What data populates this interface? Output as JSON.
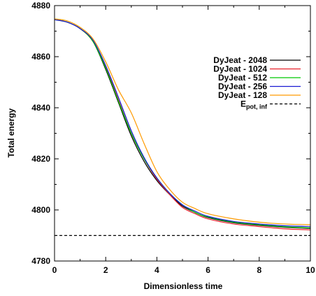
{
  "chart_data": {
    "type": "line",
    "xlabel": "Dimensionless time",
    "ylabel": "Total energy",
    "xlim": [
      0,
      10
    ],
    "ylim": [
      4780,
      4880
    ],
    "xticks": [
      0,
      2,
      4,
      6,
      8,
      10
    ],
    "yticks": [
      4780,
      4800,
      4820,
      4840,
      4860,
      4880
    ],
    "legend_position": "right",
    "grid": false,
    "series": [
      {
        "name": "DyJeat - 2048",
        "color": "#000000",
        "dash": "solid",
        "x": [
          0,
          0.5,
          1.0,
          1.5,
          2.0,
          2.5,
          3.0,
          3.5,
          4.0,
          4.5,
          5.0,
          5.5,
          6.0,
          7.0,
          8.0,
          9.0,
          10.0
        ],
        "y": [
          4874.5,
          4873.5,
          4871,
          4866,
          4855,
          4842,
          4829,
          4819,
          4811.5,
          4806,
          4801.5,
          4799,
          4797,
          4795,
          4794,
          4793.2,
          4792.8
        ]
      },
      {
        "name": "DyJeat - 1024",
        "color": "#e8202a",
        "dash": "solid",
        "x": [
          0,
          0.5,
          1.0,
          1.5,
          2.0,
          2.5,
          3.0,
          3.5,
          4.0,
          4.5,
          5.0,
          5.5,
          6.0,
          7.0,
          8.0,
          9.0,
          10.0
        ],
        "y": [
          4874.5,
          4873.5,
          4871,
          4866,
          4856,
          4843,
          4830,
          4820,
          4812,
          4806,
          4801,
          4798.5,
          4796.5,
          4794.5,
          4793.5,
          4792.6,
          4792.2
        ]
      },
      {
        "name": "DyJeat - 512",
        "color": "#00c800",
        "dash": "solid",
        "x": [
          0,
          0.5,
          1.0,
          1.5,
          2.0,
          2.5,
          3.0,
          3.5,
          4.0,
          4.5,
          5.0,
          5.5,
          6.0,
          7.0,
          8.0,
          9.0,
          10.0
        ],
        "y": [
          4874.5,
          4873.5,
          4871,
          4866,
          4855.5,
          4842.5,
          4830,
          4820,
          4812.5,
          4806.5,
          4802,
          4799,
          4797.2,
          4795.2,
          4794.2,
          4793.4,
          4793
        ]
      },
      {
        "name": "DyJeat - 256",
        "color": "#1a1ad2",
        "dash": "solid",
        "x": [
          0,
          0.5,
          1.0,
          1.5,
          2.0,
          2.5,
          3.0,
          3.5,
          4.0,
          4.5,
          5.0,
          5.5,
          6.0,
          7.0,
          8.0,
          9.0,
          10.0
        ],
        "y": [
          4874.5,
          4873.5,
          4871,
          4866.5,
          4856.5,
          4844,
          4831,
          4820.5,
          4812.5,
          4806.5,
          4802,
          4799.5,
          4797.5,
          4795.5,
          4794.5,
          4793.8,
          4793.5
        ]
      },
      {
        "name": "DyJeat - 128",
        "color": "#ff9a00",
        "dash": "solid",
        "x": [
          0,
          0.5,
          1.0,
          1.5,
          2.0,
          2.5,
          3.0,
          3.5,
          4.0,
          4.5,
          5.0,
          5.5,
          6.0,
          7.0,
          8.0,
          9.0,
          10.0
        ],
        "y": [
          4874.8,
          4874,
          4871.5,
          4867,
          4858,
          4847,
          4838,
          4826,
          4815,
          4808,
          4803,
          4800.5,
          4798.5,
          4796.5,
          4795.2,
          4794.5,
          4794.2
        ]
      },
      {
        "name": "E",
        "name_sub": "pot, inf",
        "color": "#000000",
        "dash": "dashed",
        "x": [
          0,
          10
        ],
        "y": [
          4790,
          4790
        ]
      }
    ]
  }
}
